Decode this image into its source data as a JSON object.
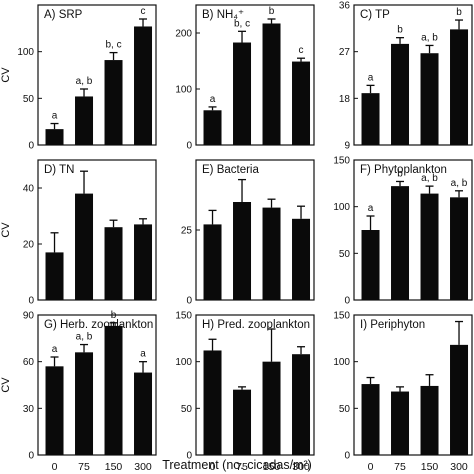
{
  "figure": {
    "xlabel": "Treatment (no. cicadas/m²)",
    "categories": [
      "0",
      "75",
      "150",
      "300"
    ],
    "ylabel": "CV"
  },
  "chart_data": [
    {
      "type": "bar",
      "title": "A) SRP",
      "categories": [
        "0",
        "75",
        "150",
        "300"
      ],
      "values": [
        17,
        52,
        91,
        127
      ],
      "errors": [
        6,
        8,
        8,
        8
      ],
      "labels": [
        "a",
        "a, b",
        "b, c",
        "c"
      ],
      "ylim": [
        0,
        150
      ],
      "yticks": [
        0,
        50,
        100
      ]
    },
    {
      "type": "bar",
      "title": "B) NH₄⁺",
      "categories": [
        "0",
        "75",
        "150",
        "300"
      ],
      "values": [
        62,
        183,
        217,
        149
      ],
      "errors": [
        6,
        20,
        8,
        6
      ],
      "labels": [
        "a",
        "b, c",
        "b",
        "c"
      ],
      "ylim": [
        0,
        250
      ],
      "yticks": [
        0,
        100,
        200
      ]
    },
    {
      "type": "bar",
      "title": "C) TP",
      "categories": [
        "0",
        "75",
        "150",
        "300"
      ],
      "values": [
        19,
        28.5,
        26.7,
        31.3
      ],
      "errors": [
        1.5,
        1.2,
        1.5,
        1.8
      ],
      "labels": [
        "a",
        "b",
        "a, b",
        "b"
      ],
      "ylim": [
        9,
        36
      ],
      "yticks": [
        9,
        18,
        27,
        36
      ]
    },
    {
      "type": "bar",
      "title": "D) TN",
      "categories": [
        "0",
        "75",
        "150",
        "300"
      ],
      "values": [
        17,
        38,
        26,
        27
      ],
      "errors": [
        7,
        8,
        2.5,
        2
      ],
      "labels": [],
      "ylim": [
        0,
        50
      ],
      "yticks": [
        0,
        20,
        40
      ]
    },
    {
      "type": "bar",
      "title": "E) Bacteria",
      "categories": [
        "0",
        "75",
        "150",
        "300"
      ],
      "values": [
        27,
        35,
        33,
        29
      ],
      "errors": [
        5,
        8,
        3,
        4.5
      ],
      "labels": [],
      "ylim": [
        0,
        50
      ],
      "yticks": [
        0,
        25
      ]
    },
    {
      "type": "bar",
      "title": "F) Phytoplankton",
      "categories": [
        "0",
        "75",
        "150",
        "300"
      ],
      "values": [
        75,
        122,
        114,
        110
      ],
      "errors": [
        15,
        5,
        8,
        7
      ],
      "labels": [
        "a",
        "b",
        "a, b",
        "a, b"
      ],
      "ylim": [
        0,
        150
      ],
      "yticks": [
        0,
        50,
        100,
        150
      ]
    },
    {
      "type": "bar",
      "title": "G) Herb. zooplankton",
      "categories": [
        "0",
        "75",
        "150",
        "300"
      ],
      "values": [
        57,
        66,
        83,
        53
      ],
      "errors": [
        6,
        5,
        2,
        7
      ],
      "labels": [
        "a",
        "a, b",
        "b",
        "a"
      ],
      "ylim": [
        0,
        90
      ],
      "yticks": [
        0,
        30,
        60,
        90
      ]
    },
    {
      "type": "bar",
      "title": "H) Pred. zooplankton",
      "categories": [
        "0",
        "75",
        "150",
        "300"
      ],
      "values": [
        112,
        70,
        100,
        108
      ],
      "errors": [
        12,
        3,
        35,
        8
      ],
      "labels": [],
      "ylim": [
        0,
        150
      ],
      "yticks": [
        0,
        50,
        100,
        150
      ]
    },
    {
      "type": "bar",
      "title": "I) Periphyton",
      "categories": [
        "0",
        "75",
        "150",
        "300"
      ],
      "values": [
        76,
        68,
        74,
        118
      ],
      "errors": [
        7,
        5,
        12,
        25
      ],
      "labels": [],
      "ylim": [
        0,
        150
      ],
      "yticks": [
        0,
        50,
        100,
        150
      ]
    }
  ]
}
